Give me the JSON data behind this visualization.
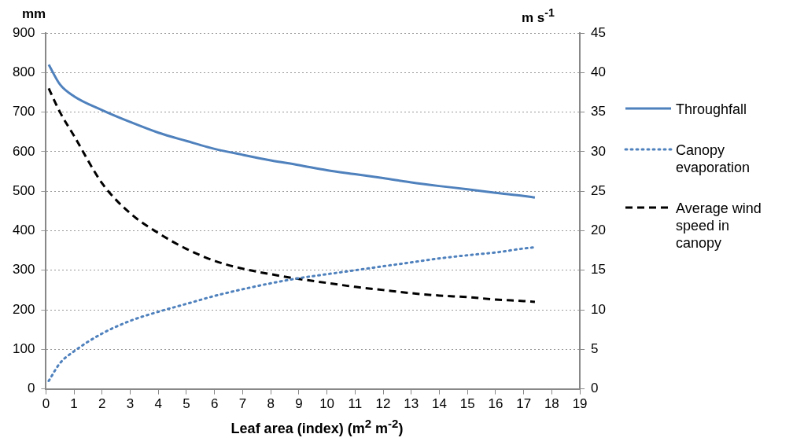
{
  "chart_data": {
    "type": "line",
    "xlabel": "Leaf area (index) (m$^{2}$ m$^{-2}$)",
    "ylabel": "mm",
    "y2label": "m s$^{-1}$",
    "xlim": [
      0,
      19
    ],
    "xticks": [
      0,
      1,
      2,
      3,
      4,
      5,
      6,
      7,
      8,
      9,
      10,
      11,
      12,
      13,
      14,
      15,
      16,
      17,
      18,
      19
    ],
    "ylim": [
      0,
      900
    ],
    "yticks": [
      0,
      100,
      200,
      300,
      400,
      500,
      600,
      700,
      800,
      900
    ],
    "y2lim": [
      0,
      45
    ],
    "y2ticks": [
      0,
      5,
      10,
      15,
      20,
      25,
      30,
      35,
      40,
      45
    ],
    "grid": "y",
    "legend": "right",
    "marker": "none",
    "series": [
      {
        "name": "Throughfall",
        "color": "#4f81bd",
        "line_style": "solid",
        "x": [
          0.1,
          0.5,
          1,
          2,
          3,
          4,
          5,
          6,
          7,
          8,
          9,
          10,
          11,
          12,
          13,
          14,
          15,
          16,
          17,
          17.4
        ],
        "values": [
          820,
          770,
          740,
          705,
          675,
          648,
          627,
          607,
          592,
          578,
          566,
          553,
          543,
          533,
          522,
          513,
          505,
          496,
          488,
          484
        ]
      },
      {
        "name": "Canopy evaporation",
        "color": "#4f81bd",
        "line_style": "dotted",
        "x": [
          0.1,
          0.5,
          1,
          2,
          3,
          4,
          5,
          6,
          7,
          8,
          9,
          10,
          11,
          12,
          13,
          14,
          15,
          16,
          17,
          17.4
        ],
        "values": [
          20,
          65,
          95,
          140,
          172,
          195,
          215,
          235,
          252,
          267,
          280,
          290,
          300,
          310,
          320,
          330,
          338,
          345,
          355,
          358
        ]
      },
      {
        "name": "Average wind speed in canopy",
        "color": "#000000",
        "line_style": "dashed",
        "axis": "y2",
        "x": [
          0.1,
          0.5,
          1,
          2,
          3,
          4,
          5,
          6,
          7,
          8,
          9,
          10,
          11,
          12,
          13,
          14,
          15,
          16,
          17,
          17.4
        ],
        "values": [
          38,
          35,
          32,
          26,
          22.2,
          19.7,
          17.7,
          16.2,
          15.2,
          14.5,
          13.9,
          13.4,
          12.9,
          12.5,
          12.1,
          11.8,
          11.6,
          11.3,
          11.1,
          11
        ]
      }
    ]
  }
}
